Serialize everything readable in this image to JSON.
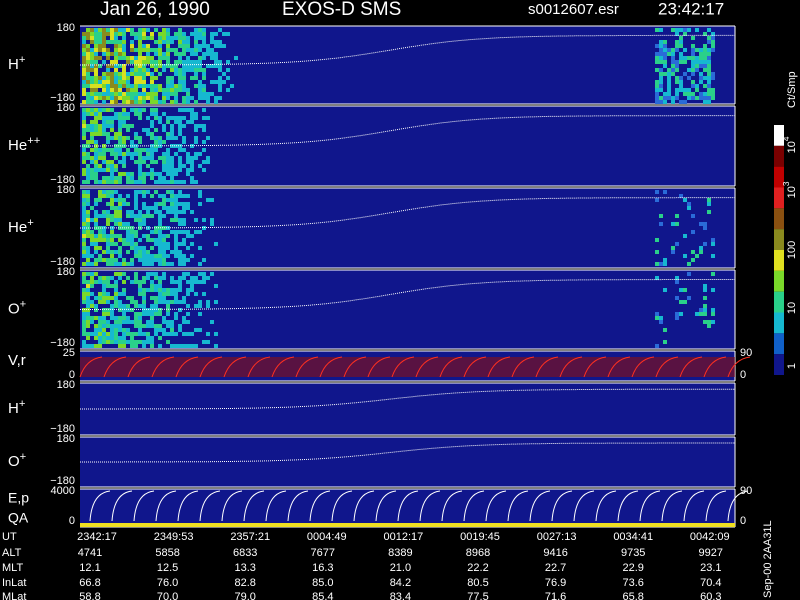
{
  "header": {
    "date": "Jan 26, 1990",
    "instrument": "EXOS-D SMS",
    "file": "s0012607.esr",
    "time": "23:42:17"
  },
  "panels": [
    {
      "label": {
        "base": "H",
        "sup": "+"
      },
      "yticks": [
        "180",
        "−180"
      ]
    },
    {
      "label": {
        "base": "He",
        "sup": "++"
      },
      "yticks": [
        "180",
        "−180"
      ]
    },
    {
      "label": {
        "base": "He",
        "sup": "+"
      },
      "yticks": [
        "180",
        "−180"
      ]
    },
    {
      "label": {
        "base": "O",
        "sup": "+"
      },
      "yticks": [
        "180",
        "−180"
      ]
    },
    {
      "label": {
        "base": "V,r"
      },
      "yticks": [
        "25",
        "0"
      ],
      "y2ticks": [
        "90",
        "0"
      ]
    },
    {
      "label": {
        "base": "H",
        "sup": "+"
      },
      "yticks": [
        "180",
        "−180"
      ]
    },
    {
      "label": {
        "base": "O",
        "sup": "+"
      },
      "yticks": [
        "180",
        "−180"
      ]
    },
    {
      "label": {
        "base": "E,p",
        "line2": "QA"
      },
      "yticks": [
        "4000",
        "0"
      ],
      "y2ticks": [
        "90",
        "0"
      ]
    }
  ],
  "colorbar": {
    "unit": "Ct/Smp",
    "ticks": [
      {
        "base": "10",
        "sup": "4"
      },
      {
        "base": "10",
        "sup": "3"
      },
      {
        "base": "100"
      },
      {
        "base": "10"
      },
      {
        "base": "1"
      }
    ]
  },
  "table": {
    "rows": [
      {
        "label": "UT",
        "cells": [
          "2342:17",
          "2349:53",
          "2357:21",
          "0004:49",
          "0012:17",
          "0019:45",
          "0027:13",
          "0034:41",
          "0042:09"
        ]
      },
      {
        "label": "ALT",
        "cells": [
          "4741",
          "5858",
          "6833",
          "7677",
          "8389",
          "8968",
          "9416",
          "9735",
          "9927"
        ]
      },
      {
        "label": "MLT",
        "cells": [
          "12.1",
          "12.5",
          "13.3",
          "16.3",
          "21.0",
          "22.2",
          "22.7",
          "22.9",
          "23.1"
        ]
      },
      {
        "label": "InLat",
        "cells": [
          "66.8",
          "76.0",
          "82.8",
          "85.0",
          "84.2",
          "80.5",
          "76.9",
          "73.6",
          "70.4"
        ]
      },
      {
        "label": "MLat",
        "cells": [
          "58.8",
          "70.0",
          "79.0",
          "85.4",
          "83.4",
          "77.5",
          "71.6",
          "65.8",
          "60.3"
        ]
      }
    ]
  },
  "footer": "Sep-00 2AA31L"
}
